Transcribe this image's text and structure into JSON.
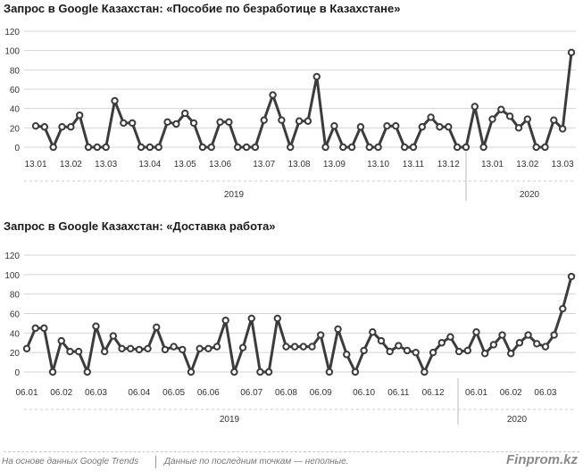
{
  "charts": [
    {
      "id": "c1",
      "type": "line",
      "title": "Запрос в Google Казахстан: «Пособие по безработице в Казахстане»",
      "xlabel": "",
      "ylabel": "",
      "ylim": [
        0,
        120
      ],
      "yticks": [
        0,
        20,
        40,
        60,
        80,
        100,
        120
      ],
      "grid": true,
      "x_tick_labels": [
        "13.01",
        "13.02",
        "13.03",
        "13.04",
        "13.05",
        "13.06",
        "13.07",
        "13.08",
        "13.09",
        "13.10",
        "13.11",
        "13.12",
        "13.01",
        "13.02",
        "13.03"
      ],
      "x_tick_positions": [
        0,
        4,
        8,
        13,
        17,
        21,
        26,
        30,
        34,
        39,
        43,
        47,
        52,
        56,
        60
      ],
      "year_labels": [
        "2019",
        "2020"
      ],
      "values": [
        22,
        21,
        0,
        21,
        21,
        33,
        0,
        0,
        0,
        48,
        25,
        25,
        0,
        0,
        0,
        26,
        24,
        35,
        25,
        0,
        0,
        26,
        26,
        0,
        0,
        0,
        28,
        54,
        28,
        0,
        27,
        27,
        73,
        0,
        22,
        0,
        0,
        21,
        0,
        0,
        22,
        22,
        0,
        0,
        21,
        31,
        21,
        21,
        0,
        0,
        42,
        0,
        29,
        39,
        32,
        20,
        29,
        0,
        0,
        28,
        19,
        98
      ]
    },
    {
      "id": "c2",
      "type": "line",
      "title": "Запрос в Google Казахстан: «Доставка работа»",
      "xlabel": "",
      "ylabel": "",
      "ylim": [
        0,
        120
      ],
      "yticks": [
        0,
        20,
        40,
        60,
        80,
        100,
        120
      ],
      "grid": true,
      "x_tick_labels": [
        "06.01",
        "06.02",
        "06.03",
        "06.04",
        "06.05",
        "06.06",
        "06.07",
        "06.08",
        "06.09",
        "06.10",
        "06.11",
        "06.12",
        "06.01",
        "06.02",
        "06.03"
      ],
      "x_tick_positions": [
        0,
        4,
        8,
        13,
        17,
        21,
        26,
        30,
        34,
        39,
        43,
        47,
        52,
        56,
        60
      ],
      "year_labels": [
        "2019",
        "2020"
      ],
      "values": [
        24,
        45,
        45,
        0,
        32,
        21,
        21,
        0,
        47,
        21,
        37,
        24,
        24,
        23,
        24,
        46,
        23,
        26,
        23,
        0,
        24,
        24,
        26,
        53,
        0,
        25,
        55,
        0,
        0,
        55,
        26,
        26,
        26,
        26,
        38,
        0,
        44,
        18,
        0,
        22,
        41,
        32,
        21,
        27,
        22,
        20,
        0,
        20,
        30,
        36,
        21,
        22,
        41,
        19,
        28,
        38,
        19,
        30,
        38,
        29,
        26,
        38,
        65,
        98
      ]
    }
  ],
  "footer": {
    "source": "На основе данных Google Trends",
    "note": "Данные по последним точкам — неполные.",
    "brand": "Finprom.kz"
  }
}
